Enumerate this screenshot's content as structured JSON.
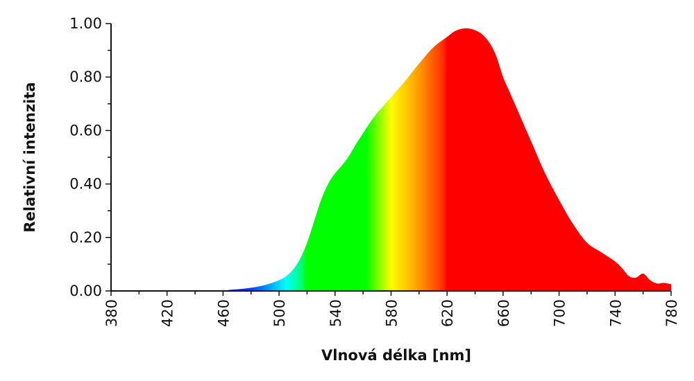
{
  "chart_data": {
    "type": "area",
    "title": "",
    "xlabel": "Vlnová délka [nm]",
    "ylabel": "Relativní intenzita",
    "xlim": [
      380,
      780
    ],
    "ylim": [
      0,
      1
    ],
    "x_ticks": [
      "380",
      "420",
      "460",
      "500",
      "540",
      "580",
      "620",
      "660",
      "700",
      "740",
      "780"
    ],
    "y_ticks": [
      "0.00",
      "0.20",
      "0.40",
      "0.60",
      "0.80",
      "1.00"
    ],
    "grid": false,
    "series": [
      {
        "name": "Relativní intenzita",
        "x": [
          380,
          440,
          460,
          465,
          470,
          480,
          490,
          500,
          505,
          510,
          515,
          520,
          525,
          530,
          535,
          540,
          545,
          550,
          555,
          560,
          565,
          570,
          575,
          580,
          590,
          600,
          610,
          620,
          625,
          630,
          635,
          640,
          645,
          650,
          655,
          660,
          665,
          670,
          680,
          690,
          700,
          710,
          720,
          730,
          740,
          745,
          750,
          755,
          760,
          765,
          770,
          775,
          780
        ],
        "values": [
          0.0,
          0.0,
          0.002,
          0.004,
          0.006,
          0.012,
          0.022,
          0.04,
          0.055,
          0.08,
          0.12,
          0.18,
          0.26,
          0.34,
          0.4,
          0.44,
          0.47,
          0.505,
          0.55,
          0.59,
          0.63,
          0.665,
          0.695,
          0.725,
          0.785,
          0.85,
          0.91,
          0.95,
          0.97,
          0.98,
          0.982,
          0.975,
          0.96,
          0.93,
          0.88,
          0.8,
          0.74,
          0.68,
          0.56,
          0.44,
          0.34,
          0.25,
          0.18,
          0.145,
          0.11,
          0.085,
          0.055,
          0.05,
          0.065,
          0.04,
          0.028,
          0.03,
          0.025
        ]
      }
    ],
    "colors": {
      "axis": "#111111",
      "gradient": [
        [
          "#0a00ff",
          460
        ],
        [
          "#0040ff",
          480
        ],
        [
          "#00b0ff",
          495
        ],
        [
          "#00ffff",
          505
        ],
        [
          "#00ff80",
          515
        ],
        [
          "#00ff00",
          520
        ],
        [
          "#00ff00",
          562
        ],
        [
          "#ffff00",
          580
        ],
        [
          "#ff9a00",
          600
        ],
        [
          "#ff3000",
          617
        ],
        [
          "#ff0000",
          620
        ],
        [
          "#ff0000",
          780
        ]
      ]
    }
  }
}
